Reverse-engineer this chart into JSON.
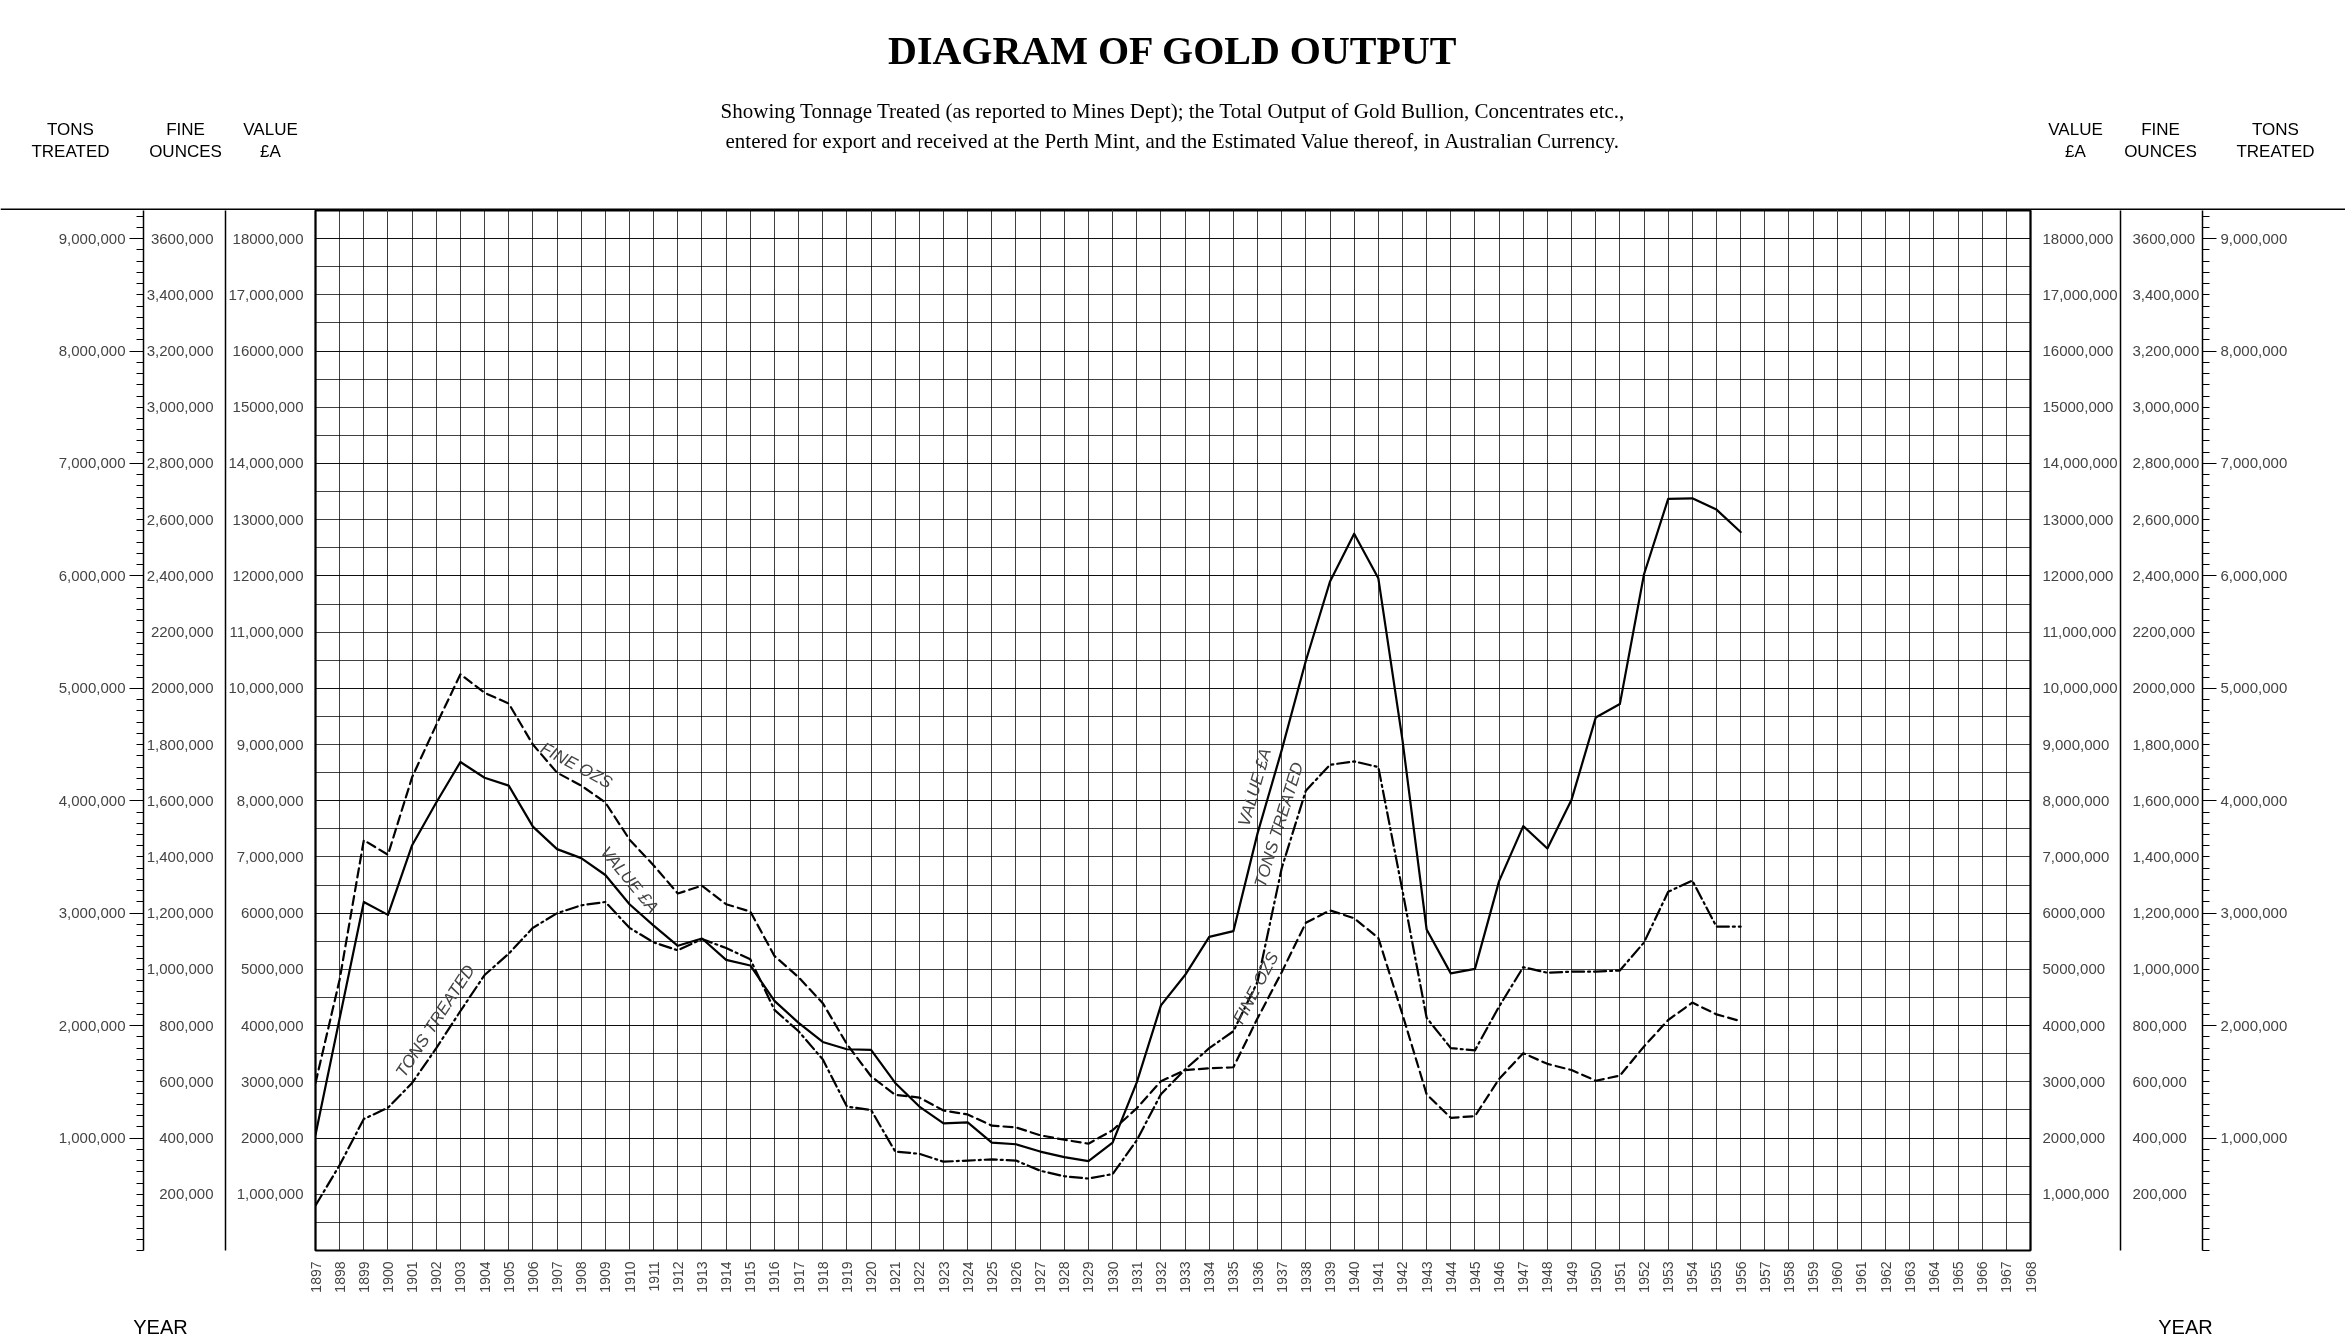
{
  "chart_data": {
    "type": "line",
    "title": "DIAGRAM OF GOLD OUTPUT",
    "subtitle": "Showing Tonnage Treated (as reported to Mines Dept); the Total Output of Gold Bullion, Concentrates etc.,\nentered for export and received at the Perth Mint, and the Estimated Value thereof, in Australian Currency.",
    "xlabel": "YEAR",
    "ylabel": "TONS TREATED",
    "y2label": "FINE OUNCES",
    "y3label": "VALUE £A",
    "x": [
      1897,
      1898,
      1899,
      1900,
      1901,
      1902,
      1903,
      1904,
      1905,
      1906,
      1907,
      1908,
      1909,
      1910,
      1911,
      1912,
      1913,
      1914,
      1915,
      1916,
      1917,
      1918,
      1919,
      1920,
      1921,
      1922,
      1923,
      1924,
      1925,
      1926,
      1927,
      1928,
      1929,
      1930,
      1931,
      1932,
      1933,
      1934,
      1935,
      1936,
      1937,
      1938,
      1939,
      1940,
      1941,
      1942,
      1943,
      1944,
      1945,
      1946,
      1947,
      1948,
      1949,
      1950,
      1951,
      1952,
      1953,
      1954,
      1955,
      1956
    ],
    "series": [
      {
        "name": "TONS TREATED",
        "color": "#000000",
        "axis": "y",
        "line_style": "dashdot",
        "values": [
          400000,
          760000,
          1170000,
          1270000,
          1490000,
          1800000,
          2130000,
          2450000,
          2640000,
          2870000,
          3000000,
          3070000,
          3100000,
          2870000,
          2740000,
          2670000,
          2770000,
          2690000,
          2590000,
          2140000,
          1950000,
          1700000,
          1280000,
          1250000,
          880000,
          860000,
          790000,
          800000,
          810000,
          800000,
          710000,
          660000,
          640000,
          680000,
          980000,
          1390000,
          1610000,
          1800000,
          1950000,
          2390000,
          3400000,
          4090000,
          4320000,
          4350000,
          4300000,
          3200000,
          2070000,
          1800000,
          1780000,
          2170000,
          2520000,
          2470000,
          2480000,
          2480000,
          2490000,
          2740000,
          3190000,
          3290000,
          2880000,
          2880000
        ]
      },
      {
        "name": "FINE OZS",
        "color": "#000000",
        "axis": "y2",
        "line_style": "dashed",
        "values": [
          596000,
          964000,
          1460000,
          1408000,
          1684000,
          1870000,
          2050000,
          1984000,
          1946000,
          1800000,
          1700000,
          1654000,
          1594000,
          1462000,
          1370000,
          1270000,
          1298000,
          1232000,
          1206000,
          1048000,
          972000,
          880000,
          734000,
          620000,
          554000,
          544000,
          498000,
          484000,
          444000,
          438000,
          410000,
          394000,
          380000,
          428000,
          506000,
          602000,
          642000,
          648000,
          652000,
          826000,
          990000,
          1166000,
          1210000,
          1182000,
          1112000,
          840000,
          556000,
          472000,
          478000,
          610000,
          702000,
          664000,
          642000,
          604000,
          622000,
          726000,
          820000,
          882000,
          840000,
          816000
        ]
      },
      {
        "name": "VALUE £A",
        "color": "#000000",
        "axis": "y3",
        "line_style": "solid",
        "values": [
          2060000,
          4130000,
          6200000,
          5970000,
          7210000,
          7970000,
          8690000,
          8410000,
          8270000,
          7540000,
          7140000,
          6980000,
          6680000,
          6160000,
          5780000,
          5420000,
          5550000,
          5170000,
          5070000,
          4440000,
          4050000,
          3710000,
          3580000,
          3570000,
          2980000,
          2560000,
          2260000,
          2280000,
          1920000,
          1890000,
          1760000,
          1660000,
          1590000,
          1920000,
          2990000,
          4360000,
          4900000,
          5580000,
          5680000,
          7420000,
          8900000,
          10490000,
          11900000,
          12750000,
          11960000,
          9080000,
          5710000,
          4930000,
          5010000,
          6570000,
          7550000,
          7150000,
          8020000,
          9480000,
          9720000,
          12030000,
          13370000,
          13380000,
          13180000,
          12780000
        ]
      }
    ],
    "xlim": [
      1897,
      1968
    ],
    "xticks": [
      1897,
      1898,
      1899,
      1900,
      1901,
      1902,
      1903,
      1904,
      1905,
      1906,
      1907,
      1908,
      1909,
      1910,
      1911,
      1912,
      1913,
      1914,
      1915,
      1916,
      1917,
      1918,
      1919,
      1920,
      1921,
      1922,
      1923,
      1924,
      1925,
      1926,
      1927,
      1928,
      1929,
      1930,
      1931,
      1932,
      1933,
      1934,
      1935,
      1936,
      1937,
      1938,
      1939,
      1940,
      1941,
      1942,
      1943,
      1944,
      1945,
      1946,
      1947,
      1948,
      1949,
      1950,
      1951,
      1952,
      1953,
      1954,
      1955,
      1956,
      1957,
      1958,
      1959,
      1960,
      1961,
      1962,
      1963,
      1964,
      1965,
      1966,
      1967,
      1968
    ],
    "ylim": [
      0,
      9250000
    ],
    "yticks": [
      {
        "value": 1000000,
        "label": "1,000,000"
      },
      {
        "value": 2000000,
        "label": "2,000,000"
      },
      {
        "value": 3000000,
        "label": "3,000,000"
      },
      {
        "value": 4000000,
        "label": "4,000,000"
      },
      {
        "value": 5000000,
        "label": "5,000,000"
      },
      {
        "value": 6000000,
        "label": "6,000,000"
      },
      {
        "value": 7000000,
        "label": "7,000,000"
      },
      {
        "value": 8000000,
        "label": "8,000,000"
      },
      {
        "value": 9000000,
        "label": "9,000,000"
      }
    ],
    "y2lim": [
      0,
      3700000
    ],
    "y2ticks": [
      {
        "value": 200000,
        "label": "200,000"
      },
      {
        "value": 400000,
        "label": "400,000"
      },
      {
        "value": 600000,
        "label": "600,000"
      },
      {
        "value": 800000,
        "label": "800,000"
      },
      {
        "value": 1000000,
        "label": "1,000,000"
      },
      {
        "value": 1200000,
        "label": "1,200,000"
      },
      {
        "value": 1400000,
        "label": "1,400,000"
      },
      {
        "value": 1600000,
        "label": "1,600,000"
      },
      {
        "value": 1800000,
        "label": "1,800,000"
      },
      {
        "value": 2000000,
        "label": "2000,000"
      },
      {
        "value": 2200000,
        "label": "2200,000"
      },
      {
        "value": 2400000,
        "label": "2,400,000"
      },
      {
        "value": 2600000,
        "label": "2,600,000"
      },
      {
        "value": 2800000,
        "label": "2,800,000"
      },
      {
        "value": 3000000,
        "label": "3,000,000"
      },
      {
        "value": 3200000,
        "label": "3,200,000"
      },
      {
        "value": 3400000,
        "label": "3,400,000"
      },
      {
        "value": 3600000,
        "label": "3600,000"
      }
    ],
    "y3lim": [
      0,
      18500000
    ],
    "y3ticks": [
      {
        "value": 1000000,
        "label": "1,000,000"
      },
      {
        "value": 2000000,
        "label": "2000,000"
      },
      {
        "value": 3000000,
        "label": "3000,000"
      },
      {
        "value": 4000000,
        "label": "4000,000"
      },
      {
        "value": 5000000,
        "label": "5000,000"
      },
      {
        "value": 6000000,
        "label": "6000,000"
      },
      {
        "value": 7000000,
        "label": "7,000,000"
      },
      {
        "value": 8000000,
        "label": "8,000,000"
      },
      {
        "value": 9000000,
        "label": "9,000,000"
      },
      {
        "value": 10000000,
        "label": "10,000,000"
      },
      {
        "value": 11000000,
        "label": "11,000,000"
      },
      {
        "value": 12000000,
        "label": "12000,000"
      },
      {
        "value": 13000000,
        "label": "13000,000"
      },
      {
        "value": 14000000,
        "label": "14,000,000"
      },
      {
        "value": 15000000,
        "label": "15000,000"
      },
      {
        "value": 16000000,
        "label": "16000,000"
      },
      {
        "value": 17000000,
        "label": "17,000,000"
      },
      {
        "value": 18000000,
        "label": "18000,000"
      }
    ],
    "grid": true
  }
}
